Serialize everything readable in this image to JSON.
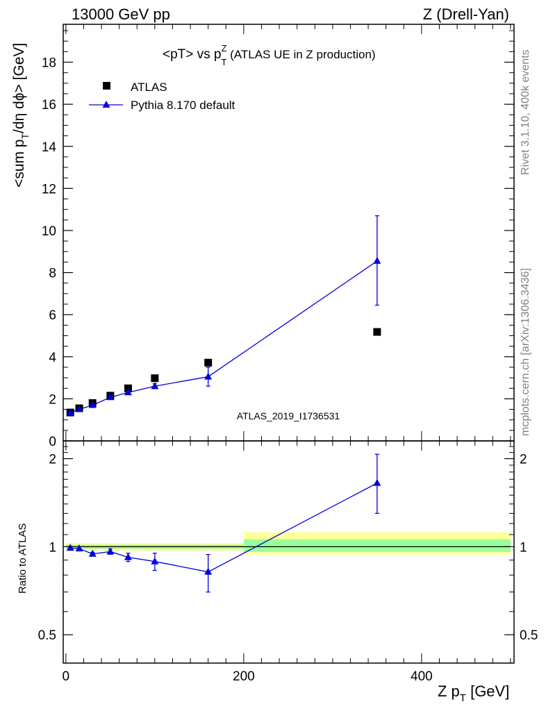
{
  "header": {
    "left": "13000 GeV pp",
    "right": "Z (Drell-Yan)"
  },
  "side_text": {
    "rivet": "Rivet 3.1.10,  400k events",
    "mcplots": "mcplots.cern.ch [arXiv:1306.3436]"
  },
  "chart_data": [
    {
      "type": "scatter",
      "panel": "main",
      "title": {
        "main": "<pT> vs p",
        "sup": "Z",
        "sub": "T",
        "rest": " (ATLAS UE in Z production)"
      },
      "ylabel": {
        "pre": "<sum p",
        "sub": "T",
        "post": "/dη dϕ> [GeV]"
      },
      "analysis_id": "ATLAS_2019_I1736531",
      "xlim": [
        -3,
        504
      ],
      "ylim": [
        0,
        19.8
      ],
      "yticks": [
        0,
        2,
        4,
        6,
        8,
        10,
        12,
        14,
        16,
        18
      ],
      "legend_position": "top-left",
      "series": [
        {
          "name": "ATLAS",
          "marker": "square",
          "color": "#000000",
          "x": [
            5,
            15,
            30,
            50,
            70,
            100,
            160,
            350
          ],
          "y": [
            1.35,
            1.55,
            1.8,
            2.15,
            2.5,
            2.98,
            3.72,
            5.18
          ]
        },
        {
          "name": "Pythia 8.170 default",
          "marker": "triangle",
          "color": "#0000dd",
          "x": [
            5,
            15,
            30,
            50,
            70,
            100,
            160,
            350
          ],
          "y": [
            1.34,
            1.5,
            1.7,
            2.07,
            2.3,
            2.6,
            3.05,
            8.55
          ],
          "yerr_low": [
            0.03,
            0.04,
            0.05,
            0.06,
            0.08,
            0.12,
            0.45,
            2.1
          ],
          "yerr_high": [
            0.03,
            0.04,
            0.05,
            0.06,
            0.08,
            0.12,
            0.45,
            2.15
          ]
        }
      ]
    },
    {
      "type": "scatter",
      "panel": "ratio",
      "ylabel": "Ratio to ATLAS",
      "xlabel": {
        "pre": "Z p",
        "sub": "T",
        "post": " [GeV]"
      },
      "xlim": [
        -3,
        504
      ],
      "ylim_log": [
        0.4,
        2.3
      ],
      "yticks": [
        0.5,
        1,
        2
      ],
      "yticklabels": [
        "0.5",
        "1",
        "2"
      ],
      "xticks": [
        0,
        200,
        400
      ],
      "xticklabels": [
        "0",
        "200",
        "400"
      ],
      "reference_bands": [
        {
          "x_start": 0,
          "x_end": 200,
          "yellow": [
            0.97,
            1.03
          ],
          "green": [
            0.985,
            1.015
          ]
        },
        {
          "x_start": 200,
          "x_end": 500,
          "yellow": [
            0.94,
            1.12
          ],
          "green": [
            0.96,
            1.06
          ]
        }
      ],
      "series": [
        {
          "name": "Pythia 8.170 default",
          "color": "#0000dd",
          "x": [
            5,
            15,
            30,
            50,
            70,
            100,
            160,
            350
          ],
          "y": [
            0.99,
            0.985,
            0.945,
            0.962,
            0.92,
            0.89,
            0.82,
            1.65
          ],
          "yerr_low": [
            0.01,
            0.01,
            0.012,
            0.02,
            0.03,
            0.06,
            0.12,
            0.35
          ],
          "yerr_high": [
            0.01,
            0.01,
            0.012,
            0.02,
            0.03,
            0.06,
            0.12,
            0.42
          ]
        }
      ]
    }
  ]
}
